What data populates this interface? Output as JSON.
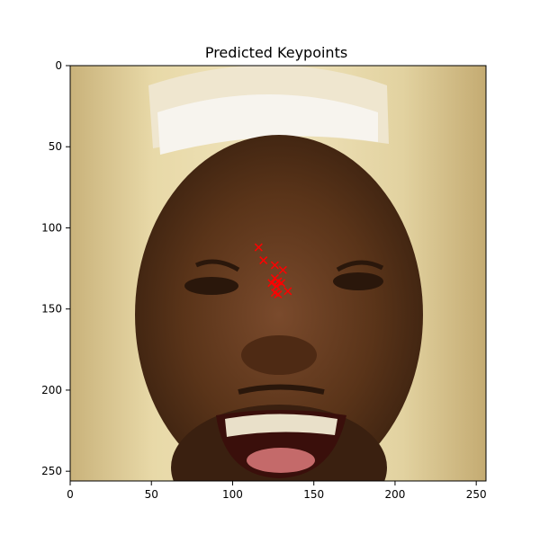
{
  "chart_data": {
    "type": "scatter",
    "title": "Predicted Keypoints",
    "xlabel": "",
    "ylabel": "",
    "xlim": [
      0,
      256
    ],
    "ylim": [
      256,
      0
    ],
    "y_inverted": true,
    "background": "image",
    "image_description": "close-up photo of a laughing man's face with long blond wig hair",
    "xticks": [
      0,
      50,
      100,
      150,
      200,
      250
    ],
    "yticks": [
      0,
      50,
      100,
      150,
      200,
      250
    ],
    "marker": "x",
    "marker_color": "#ff0000",
    "series": [
      {
        "x": [
          116,
          119,
          126,
          131,
          126,
          128,
          124,
          130,
          127,
          134,
          126,
          128
        ],
        "y": [
          112,
          120,
          123,
          126,
          131,
          133,
          134,
          134,
          136,
          139,
          140,
          141
        ]
      }
    ]
  }
}
